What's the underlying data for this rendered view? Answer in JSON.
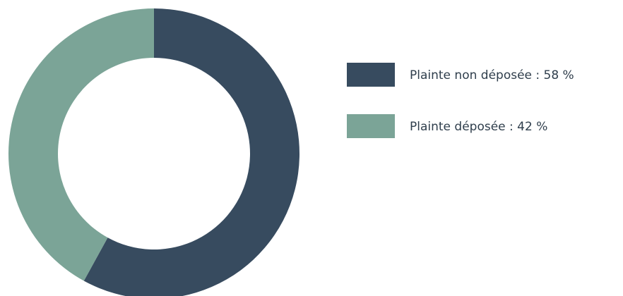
{
  "chart_data": {
    "type": "pie",
    "variant": "donut",
    "title": "",
    "legend_position": "right",
    "slices": [
      {
        "label": "Plainte non déposée",
        "value": 58,
        "color": "#374b5f",
        "legend_text": "Plainte non déposée : 58 %"
      },
      {
        "label": "Plainte déposée",
        "value": 42,
        "color": "#7ba497",
        "legend_text": "Plainte déposée : 42 %"
      }
    ]
  }
}
